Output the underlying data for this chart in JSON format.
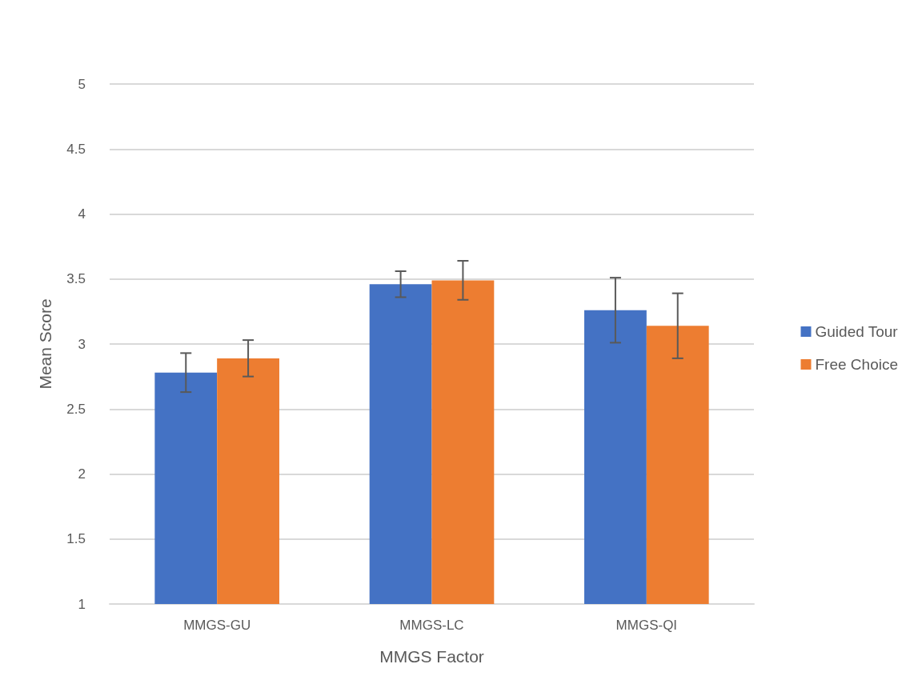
{
  "chart_data": {
    "type": "bar",
    "xlabel": "MMGS Factor",
    "ylabel": "Mean Score",
    "categories": [
      "MMGS-GU",
      "MMGS-LC",
      "MMGS-QI"
    ],
    "series": [
      {
        "name": "Guided Tour",
        "color": "#4472c4",
        "values": [
          2.78,
          3.46,
          3.26
        ],
        "errors": [
          0.15,
          0.1,
          0.25
        ]
      },
      {
        "name": "Free Choice",
        "color": "#ed7d31",
        "values": [
          2.89,
          3.49,
          3.14
        ],
        "errors": [
          0.14,
          0.15,
          0.25
        ]
      }
    ],
    "ylim": [
      1,
      5
    ],
    "yticks": [
      1,
      1.5,
      2,
      2.5,
      3,
      3.5,
      4,
      4.5,
      5
    ],
    "grid": "y",
    "legend": "right"
  }
}
